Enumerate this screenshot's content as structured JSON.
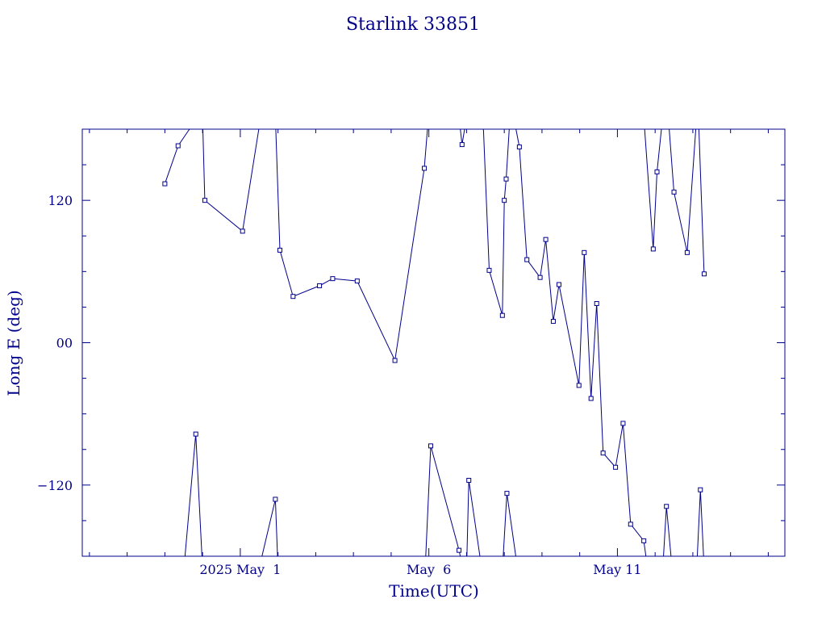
{
  "chart_data": {
    "type": "line",
    "title": "Starlink 33851",
    "xlabel": "Time(UTC)",
    "ylabel": "Long E (deg)",
    "x_start": "2025-04-26T00:00Z",
    "x_end": "2025-05-14T00:00Z",
    "xlim_days": [
      -4.19,
      14.44
    ],
    "ylim": [
      -180,
      180
    ],
    "yticks": [
      -120,
      0,
      120
    ],
    "ytick_labels": [
      "−120",
      "00",
      "120"
    ],
    "xticks": [
      {
        "day": 0,
        "label": "2025 May  1"
      },
      {
        "day": 5,
        "label": "May  6"
      },
      {
        "day": 10,
        "label": "May 11"
      }
    ],
    "grid": false,
    "legend": "none",
    "color": "#00008b",
    "segments": [
      [
        [
          -2.0,
          134
        ],
        [
          -1.65,
          166
        ],
        [
          -1.37,
          179
        ],
        [
          -1.0,
          192
        ]
      ],
      [
        [
          -1.5,
          -192
        ],
        [
          -1.18,
          -77
        ],
        [
          -1.0,
          -190
        ]
      ],
      [
        [
          -1.0,
          190
        ],
        [
          -0.94,
          120
        ],
        [
          0.06,
          94
        ],
        [
          0.5,
          182
        ]
      ],
      [
        [
          0.5,
          -190
        ],
        [
          0.93,
          -132
        ],
        [
          1.0,
          -190
        ]
      ],
      [
        [
          0.93,
          190
        ],
        [
          1.05,
          78
        ],
        [
          1.4,
          39
        ],
        [
          2.1,
          48
        ],
        [
          2.45,
          54
        ],
        [
          3.1,
          52
        ],
        [
          4.1,
          -15
        ],
        [
          4.88,
          147
        ],
        [
          5.0,
          195
        ]
      ],
      [
        [
          4.9,
          -192
        ],
        [
          5.05,
          -87
        ],
        [
          5.8,
          -175
        ],
        [
          5.9,
          -190
        ]
      ],
      [
        [
          5.8,
          190
        ],
        [
          5.88,
          167
        ],
        [
          6.0,
          190
        ]
      ],
      [
        [
          6.0,
          -192
        ],
        [
          6.06,
          -116
        ],
        [
          6.4,
          -190
        ]
      ],
      [
        [
          6.35,
          190
        ],
        [
          6.45,
          179
        ],
        [
          6.6,
          61
        ],
        [
          6.95,
          23
        ],
        [
          7.0,
          120
        ],
        [
          7.05,
          138
        ],
        [
          7.15,
          190
        ]
      ],
      [
        [
          6.95,
          -192
        ],
        [
          7.07,
          -127
        ],
        [
          7.35,
          -190
        ]
      ],
      [
        [
          7.25,
          190
        ],
        [
          7.4,
          165
        ],
        [
          7.6,
          70
        ],
        [
          7.95,
          55
        ],
        [
          8.1,
          87
        ],
        [
          8.3,
          18
        ],
        [
          8.45,
          49
        ],
        [
          8.98,
          -36
        ],
        [
          9.12,
          76
        ],
        [
          9.3,
          -47
        ],
        [
          9.45,
          33
        ],
        [
          9.62,
          -93
        ],
        [
          9.95,
          -105
        ],
        [
          10.15,
          -68
        ],
        [
          10.35,
          -153
        ],
        [
          10.7,
          -167
        ],
        [
          10.8,
          -190
        ]
      ],
      [
        [
          10.7,
          190
        ],
        [
          10.95,
          79
        ],
        [
          11.05,
          144
        ],
        [
          11.2,
          190
        ]
      ],
      [
        [
          11.2,
          -192
        ],
        [
          11.3,
          -138
        ],
        [
          11.45,
          -190
        ]
      ],
      [
        [
          11.35,
          190
        ],
        [
          11.5,
          127
        ],
        [
          11.85,
          76
        ],
        [
          12.1,
          190
        ]
      ],
      [
        [
          12.1,
          -192
        ],
        [
          12.2,
          -124
        ],
        [
          12.3,
          -190
        ]
      ],
      [
        [
          12.15,
          190
        ],
        [
          12.3,
          58
        ]
      ]
    ]
  }
}
